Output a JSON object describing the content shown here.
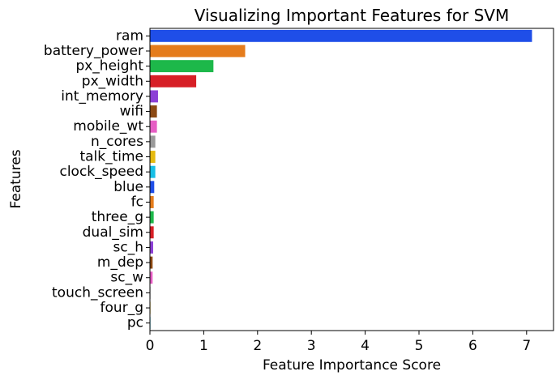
{
  "chart_data": {
    "type": "bar",
    "orientation": "horizontal",
    "title": "Visualizing Important Features for SVM",
    "xlabel": "Feature Importance Score",
    "ylabel": "Features",
    "xlim": [
      0,
      7.5
    ],
    "xticks": [
      0,
      1,
      2,
      3,
      4,
      5,
      6,
      7
    ],
    "grid": false,
    "categories": [
      "ram",
      "battery_power",
      "px_height",
      "px_width",
      "int_memory",
      "wifi",
      "mobile_wt",
      "n_cores",
      "talk_time",
      "clock_speed",
      "blue",
      "fc",
      "three_g",
      "dual_sim",
      "sc_h",
      "m_dep",
      "sc_w",
      "touch_screen",
      "four_g",
      "pc"
    ],
    "values": [
      7.1,
      1.77,
      1.18,
      0.86,
      0.15,
      0.13,
      0.13,
      0.1,
      0.1,
      0.1,
      0.08,
      0.07,
      0.07,
      0.07,
      0.06,
      0.05,
      0.05,
      0.01,
      0.01,
      0.01
    ],
    "colors": [
      "#1f4ee8",
      "#e57c1c",
      "#1db84a",
      "#d71f26",
      "#8c40d6",
      "#8c4a14",
      "#e65ec4",
      "#9a9a9a",
      "#e6ba0f",
      "#17bfe6",
      "#1f4ee8",
      "#e57c1c",
      "#1db84a",
      "#d71f26",
      "#8c40d6",
      "#8c4a14",
      "#e65ec4",
      "#9a9a9a",
      "#e6ba0f",
      "#17bfe6"
    ]
  }
}
